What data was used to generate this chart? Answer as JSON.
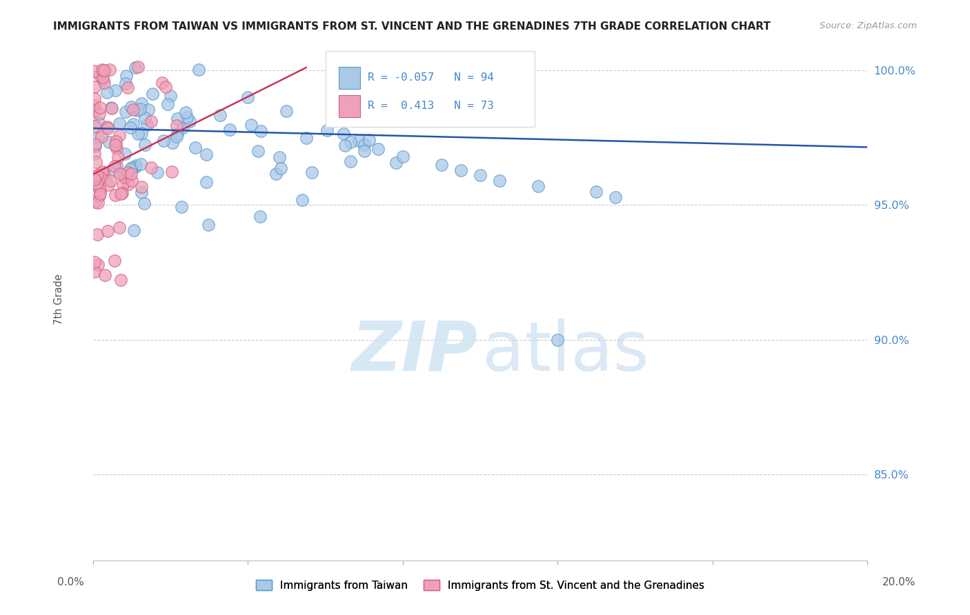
{
  "title": "IMMIGRANTS FROM TAIWAN VS IMMIGRANTS FROM ST. VINCENT AND THE GRENADINES 7TH GRADE CORRELATION CHART",
  "source": "Source: ZipAtlas.com",
  "ylabel": "7th Grade",
  "x_range": [
    0.0,
    0.2
  ],
  "y_range": [
    0.818,
    1.012
  ],
  "y_ticks": [
    0.85,
    0.9,
    0.95,
    1.0
  ],
  "y_tick_labels": [
    "85.0%",
    "90.0%",
    "95.0%",
    "100.0%"
  ],
  "legend_R_blue": "-0.057",
  "legend_N_blue": "94",
  "legend_R_pink": "0.413",
  "legend_N_pink": "73",
  "blue_scatter_color": "#aac8e8",
  "blue_edge_color": "#5599cc",
  "pink_scatter_color": "#f0a0b8",
  "pink_edge_color": "#d06080",
  "blue_line_color": "#2255aa",
  "pink_line_color": "#cc3355",
  "grid_color": "#cccccc",
  "title_color": "#222222",
  "source_color": "#999999",
  "axis_label_color": "#555555",
  "right_tick_color": "#4488cc",
  "watermark_zip_color": "#d0e4f4",
  "watermark_atlas_color": "#c4daf0",
  "legend_box_color": "#dddddd",
  "blue_line_x": [
    0.0,
    0.2
  ],
  "blue_line_y": [
    0.9785,
    0.9715
  ],
  "pink_line_x": [
    0.0,
    0.055
  ],
  "pink_line_y": [
    0.9615,
    1.001
  ]
}
